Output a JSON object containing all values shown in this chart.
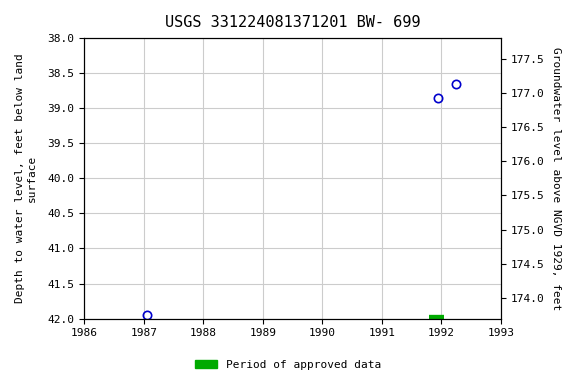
{
  "title": "USGS 331224081371201 BW- 699",
  "xlabel": "",
  "ylabel_left": "Depth to water level, feet below land\nsurface",
  "ylabel_right": "Groundwater level above NGVD 1929, feet",
  "data_points": [
    {
      "x": 1987.05,
      "y_depth": 41.95
    },
    {
      "x": 1991.95,
      "y_depth": 38.85
    },
    {
      "x": 1992.25,
      "y_depth": 38.65
    }
  ],
  "approved_bar": {
    "x_start": 1991.8,
    "x_end": 1992.05,
    "y": 42.0
  },
  "xlim": [
    1986,
    1993
  ],
  "ylim_left": [
    42.0,
    38.0
  ],
  "ylim_right": [
    173.7,
    177.8
  ],
  "xticks": [
    1986,
    1987,
    1988,
    1989,
    1990,
    1991,
    1992,
    1993
  ],
  "yticks_left": [
    38.0,
    38.5,
    39.0,
    39.5,
    40.0,
    40.5,
    41.0,
    41.5,
    42.0
  ],
  "yticks_right": [
    174.0,
    174.5,
    175.0,
    175.5,
    176.0,
    176.5,
    177.0,
    177.5
  ],
  "marker_color": "#0000cc",
  "marker_face": "none",
  "marker_size": 6,
  "approved_color": "#00aa00",
  "bg_color": "#ffffff",
  "grid_color": "#cccccc",
  "title_fontsize": 11,
  "label_fontsize": 8,
  "tick_fontsize": 8,
  "font_family": "monospace"
}
